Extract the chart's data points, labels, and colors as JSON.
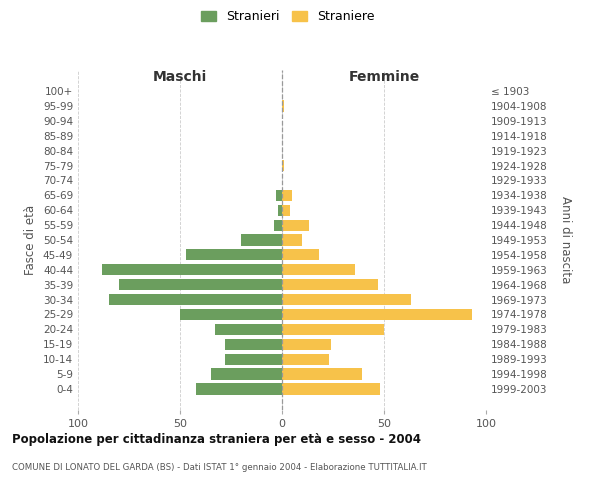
{
  "age_groups": [
    "100+",
    "95-99",
    "90-94",
    "85-89",
    "80-84",
    "75-79",
    "70-74",
    "65-69",
    "60-64",
    "55-59",
    "50-54",
    "45-49",
    "40-44",
    "35-39",
    "30-34",
    "25-29",
    "20-24",
    "15-19",
    "10-14",
    "5-9",
    "0-4"
  ],
  "birth_years": [
    "≤ 1903",
    "1904-1908",
    "1909-1913",
    "1914-1918",
    "1919-1923",
    "1924-1928",
    "1929-1933",
    "1934-1938",
    "1939-1943",
    "1944-1948",
    "1949-1953",
    "1954-1958",
    "1959-1963",
    "1964-1968",
    "1969-1973",
    "1974-1978",
    "1979-1983",
    "1984-1988",
    "1989-1993",
    "1994-1998",
    "1999-2003"
  ],
  "maschi": [
    0,
    0,
    0,
    0,
    0,
    0,
    0,
    3,
    2,
    4,
    20,
    47,
    88,
    80,
    85,
    50,
    33,
    28,
    28,
    35,
    42
  ],
  "femmine": [
    0,
    1,
    0,
    0,
    0,
    1,
    0,
    5,
    4,
    13,
    10,
    18,
    36,
    47,
    63,
    93,
    50,
    24,
    23,
    39,
    48
  ],
  "maschi_color": "#6b9e5e",
  "femmine_color": "#f7c24a",
  "background_color": "#ffffff",
  "grid_color": "#cccccc",
  "title": "Popolazione per cittadinanza straniera per età e sesso - 2004",
  "subtitle": "COMUNE DI LONATO DEL GARDA (BS) - Dati ISTAT 1° gennaio 2004 - Elaborazione TUTTITALIA.IT",
  "label_maschi": "Maschi",
  "label_femmine": "Femmine",
  "ylabel_left": "Fasce di età",
  "ylabel_right": "Anni di nascita",
  "legend_maschi": "Stranieri",
  "legend_femmine": "Straniere",
  "xlim": 100
}
